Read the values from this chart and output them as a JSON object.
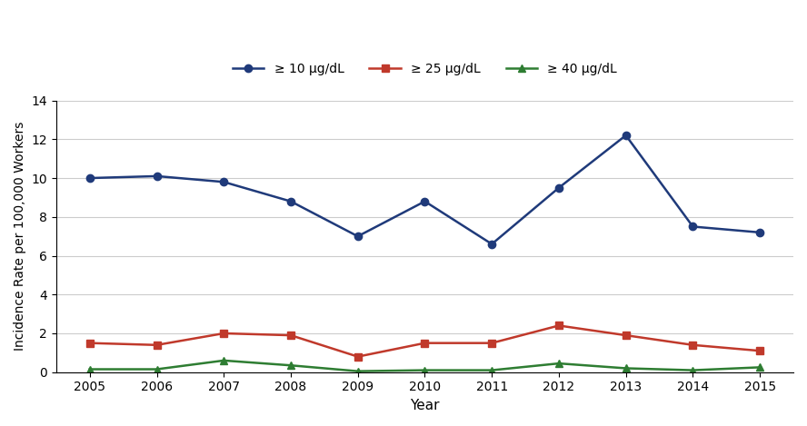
{
  "years": [
    2005,
    2006,
    2007,
    2008,
    2009,
    2010,
    2011,
    2012,
    2013,
    2014,
    2015
  ],
  "series": [
    {
      "label": "≥ 10 μg/dL",
      "values": [
        10.0,
        10.1,
        9.8,
        8.8,
        7.0,
        8.8,
        6.6,
        9.5,
        12.2,
        7.5,
        7.2
      ],
      "color": "#1f3a7a",
      "marker": "o",
      "linewidth": 1.8,
      "markersize": 6
    },
    {
      "label": "≥ 25 μg/dL",
      "values": [
        1.5,
        1.4,
        2.0,
        1.9,
        0.8,
        1.5,
        1.5,
        2.4,
        1.9,
        1.4,
        1.1
      ],
      "color": "#c0392b",
      "marker": "s",
      "linewidth": 1.8,
      "markersize": 6
    },
    {
      "label": "≥ 40 μg/dL",
      "values": [
        0.15,
        0.15,
        0.6,
        0.35,
        0.05,
        0.1,
        0.1,
        0.45,
        0.2,
        0.1,
        0.25
      ],
      "color": "#2e7d32",
      "marker": "^",
      "linewidth": 1.8,
      "markersize": 6
    }
  ],
  "xlabel": "Year",
  "ylabel": "Incidence Rate per 100,000 Workers",
  "ylim": [
    0,
    14
  ],
  "yticks": [
    0,
    2,
    4,
    6,
    8,
    10,
    12,
    14
  ],
  "background_color": "#ffffff",
  "grid_color": "#cccccc",
  "legend_loc": "upper center",
  "legend_ncol": 3
}
